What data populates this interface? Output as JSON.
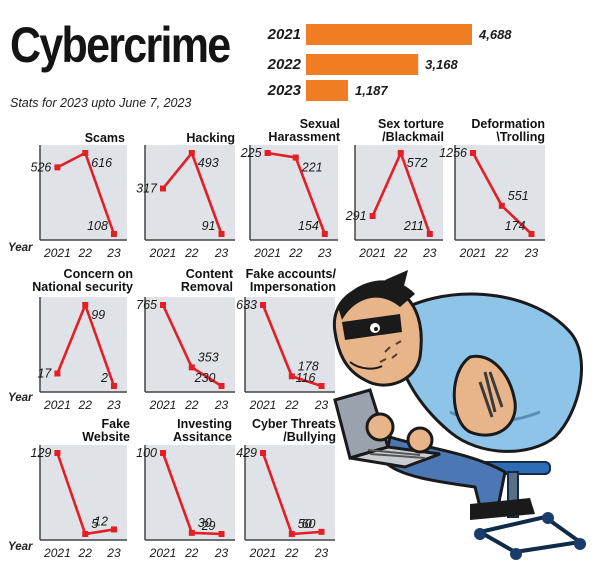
{
  "header": {
    "title": "Cybercrime",
    "subtitle": "Stats for 2023 upto June 7, 2023"
  },
  "axis_word": "Year",
  "colors": {
    "bar": "#f07d23",
    "line": "#e51e25",
    "panel": "#dfe3e8",
    "axis": "#444444"
  },
  "chart_data": [
    {
      "type": "bar",
      "orientation": "horizontal",
      "categories": [
        "2021",
        "2022",
        "2023"
      ],
      "values": [
        4688,
        3168,
        1187
      ],
      "value_labels": [
        "4,688",
        "3,168",
        "1,187"
      ]
    },
    {
      "type": "line",
      "title": [
        "Scams"
      ],
      "x": [
        "2021",
        "22",
        "23"
      ],
      "values": [
        526,
        616,
        108
      ]
    },
    {
      "type": "line",
      "title": [
        "Hacking"
      ],
      "x": [
        "2021",
        "22",
        "23"
      ],
      "values": [
        317,
        493,
        91
      ]
    },
    {
      "type": "line",
      "title": [
        "Sexual",
        "Harassment"
      ],
      "x": [
        "2021",
        "22",
        "23"
      ],
      "values": [
        225,
        221,
        154
      ]
    },
    {
      "type": "line",
      "title": [
        "Sex torture",
        "/Blackmail"
      ],
      "x": [
        "2021",
        "22",
        "23"
      ],
      "values": [
        291,
        572,
        211
      ]
    },
    {
      "type": "line",
      "title": [
        "Deformation",
        "\\Trolling"
      ],
      "x": [
        "2021",
        "22",
        "23"
      ],
      "values": [
        1256,
        551,
        174
      ]
    },
    {
      "type": "line",
      "title": [
        "Concern on",
        "National security"
      ],
      "x": [
        "2021",
        "22",
        "23"
      ],
      "values": [
        17,
        99,
        2
      ]
    },
    {
      "type": "line",
      "title": [
        "Content",
        "Removal"
      ],
      "x": [
        "2021",
        "22",
        "23"
      ],
      "values": [
        765,
        353,
        230
      ]
    },
    {
      "type": "line",
      "title": [
        "Fake accounts/",
        "Impersonation"
      ],
      "x": [
        "2021",
        "22",
        "23"
      ],
      "values": [
        633,
        178,
        116
      ]
    },
    {
      "type": "line",
      "title": [
        "Fake",
        "Website"
      ],
      "x": [
        "2021",
        "22",
        "23"
      ],
      "values": [
        129,
        5,
        12
      ]
    },
    {
      "type": "line",
      "title": [
        "Investing",
        "Assitance"
      ],
      "x": [
        "2021",
        "22",
        "23"
      ],
      "values": [
        100,
        30,
        29
      ]
    },
    {
      "type": "line",
      "title": [
        "Cyber Threats",
        "/Bullying"
      ],
      "x": [
        "2021",
        "22",
        "23"
      ],
      "values": [
        429,
        50,
        60
      ]
    }
  ]
}
